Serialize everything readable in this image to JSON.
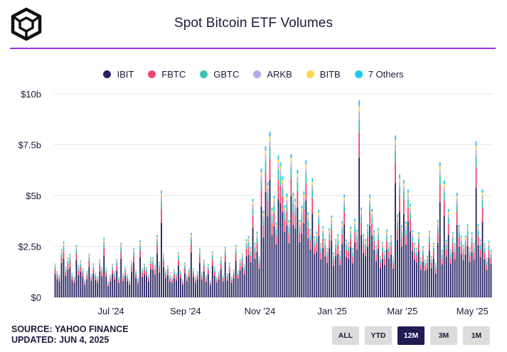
{
  "header": {
    "title": "Spot Bitcoin ETF Volumes"
  },
  "legend": [
    {
      "label": "IBIT",
      "color": "#262262"
    },
    {
      "label": "FBTC",
      "color": "#ef476f"
    },
    {
      "label": "GBTC",
      "color": "#3dc1b4"
    },
    {
      "label": "ARKB",
      "color": "#b8a9e6"
    },
    {
      "label": "BITB",
      "color": "#f7d84a"
    },
    {
      "label": "7 Others",
      "color": "#1ec8f0"
    }
  ],
  "footer": {
    "source": "SOURCE: YAHOO FINANCE",
    "updated": "UPDATED: JUN 4, 2025"
  },
  "buttons": [
    {
      "label": "ALL",
      "active": false
    },
    {
      "label": "YTD",
      "active": false
    },
    {
      "label": "12M",
      "active": true
    },
    {
      "label": "3M",
      "active": false
    },
    {
      "label": "1M",
      "active": false
    }
  ],
  "chart_data": {
    "type": "bar",
    "stacked": true,
    "title": "Spot Bitcoin ETF Volumes",
    "xlabel": "",
    "ylabel": "",
    "ylim": [
      0,
      10
    ],
    "y_unit": "billions USD",
    "y_ticks": [
      0,
      2.5,
      5,
      7.5,
      10
    ],
    "y_tick_labels": [
      "$0",
      "$2.5b",
      "$5b",
      "$7.5b",
      "$10b"
    ],
    "x_tick_labels": [
      "Jul '24",
      "Sep '24",
      "Nov '24",
      "Jan '25",
      "Mar '25",
      "May '25"
    ],
    "x_tick_positions": [
      0.13,
      0.3,
      0.47,
      0.635,
      0.795,
      0.955
    ],
    "grid": true,
    "legend_position": "top-center",
    "series_names": [
      "IBIT",
      "FBTC",
      "GBTC",
      "ARKB",
      "BITB",
      "7 Others"
    ],
    "series_colors": [
      "#262262",
      "#ef476f",
      "#3dc1b4",
      "#b8a9e6",
      "#f7d84a",
      "#1ec8f0"
    ],
    "totals": [
      1.7,
      1.3,
      1.1,
      2.3,
      2.8,
      1.5,
      1.9,
      2.2,
      1.2,
      1.0,
      2.5,
      1.6,
      1.8,
      1.4,
      0.9,
      1.3,
      2.1,
      1.1,
      1.7,
      1.2,
      1.0,
      1.9,
      1.5,
      2.9,
      1.4,
      0.8,
      1.1,
      1.6,
      1.3,
      1.9,
      1.0,
      2.6,
      1.2,
      1.5,
      1.1,
      0.9,
      1.8,
      2.4,
      1.3,
      1.0,
      2.8,
      1.4,
      1.7,
      1.5,
      1.1,
      1.9,
      2.0,
      1.6,
      3.0,
      1.8,
      5.3,
      2.1,
      1.3,
      1.6,
      1.1,
      1.0,
      1.4,
      1.2,
      2.2,
      1.3,
      0.9,
      1.7,
      1.1,
      1.5,
      3.2,
      1.4,
      1.0,
      1.3,
      2.4,
      1.2,
      1.9,
      1.1,
      1.6,
      0.8,
      2.3,
      1.5,
      1.0,
      1.3,
      2.0,
      1.1,
      2.4,
      1.2,
      1.7,
      1.0,
      1.4,
      2.6,
      1.3,
      1.8,
      2.2,
      1.6,
      2.8,
      3.1,
      2.5,
      4.8,
      2.6,
      3.3,
      2.0,
      6.2,
      4.4,
      7.5,
      5.6,
      7.9,
      4.5,
      5.0,
      3.6,
      7.2,
      6.7,
      5.9,
      4.4,
      5.2,
      3.8,
      6.9,
      5.3,
      4.9,
      6.2,
      3.7,
      4.6,
      5.2,
      6.6,
      4.3,
      3.4,
      5.8,
      2.9,
      3.3,
      4.3,
      2.6,
      3.6,
      2.9,
      2.4,
      3.3,
      4.1,
      2.2,
      2.8,
      3.2,
      2.3,
      3.7,
      4.9,
      2.9,
      2.7,
      3.4,
      2.5,
      3.9,
      3.3,
      9.4,
      4.5,
      3.1,
      2.8,
      3.7,
      5.1,
      4.3,
      3.2,
      2.6,
      3.4,
      2.0,
      2.8,
      2.3,
      3.3,
      2.6,
      3.1,
      2.0,
      7.8,
      4.2,
      6.1,
      3.5,
      5.6,
      3.8,
      5.3,
      4.5,
      3.4,
      2.7,
      2.4,
      3.1,
      2.0,
      2.5,
      1.8,
      2.1,
      3.3,
      2.0,
      2.6,
      1.7,
      3.8,
      6.5,
      2.4,
      5.8,
      2.8,
      4.2,
      2.4,
      3.2,
      2.6,
      5.3,
      3.6,
      3.0,
      2.5,
      3.1,
      3.6,
      2.4,
      3.3,
      2.7,
      7.6,
      3.5,
      2.9,
      5.3,
      2.6,
      2.0,
      2.8,
      2.3
    ]
  }
}
